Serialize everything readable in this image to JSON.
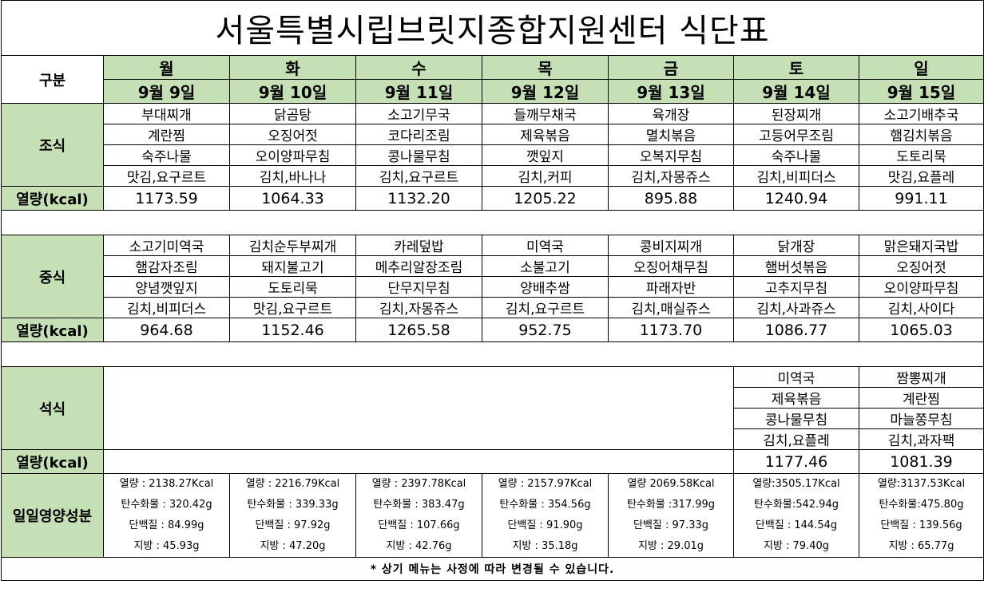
{
  "title": "서울특별시립브릿지종합지원센터  식단표",
  "header": {
    "label": "구분",
    "days": [
      "월",
      "화",
      "수",
      "목",
      "금",
      "토",
      "일"
    ],
    "dates": [
      "9월 9일",
      "9월 10일",
      "9월 11일",
      "9월 12일",
      "9월 13일",
      "9월 14일",
      "9월 15일"
    ]
  },
  "calorie_label": "열량(kcal)",
  "breakfast": {
    "label": "조식",
    "rows": [
      [
        "부대찌개",
        "닭곰탕",
        "소고기무국",
        "들깨무채국",
        "육개장",
        "된장찌개",
        "소고기배추국"
      ],
      [
        "계란찜",
        "오징어젓",
        "코다리조림",
        "제육볶음",
        "멸치볶음",
        "고등어무조림",
        "햄김치볶음"
      ],
      [
        "숙주나물",
        "오이양파무침",
        "콩나물무침",
        "깻잎지",
        "오복지무침",
        "숙주나물",
        "도토리묵"
      ],
      [
        "맛김,요구르트",
        "김치,바나나",
        "김치,요구르트",
        "김치,커피",
        "김치,자몽쥬스",
        "김치,비피더스",
        "맛김,요플레"
      ]
    ],
    "kcal": [
      "1173.59",
      "1064.33",
      "1132.20",
      "1205.22",
      "895.88",
      "1240.94",
      "991.11"
    ]
  },
  "lunch": {
    "label": "중식",
    "rows": [
      [
        "소고기미역국",
        "김치순두부찌개",
        "카레덮밥",
        "미역국",
        "콩비지찌개",
        "닭개장",
        "맑은돼지국밥"
      ],
      [
        "햄감자조림",
        "돼지불고기",
        "메추리알장조림",
        "소불고기",
        "오징어채무침",
        "햄버섯볶음",
        "오징어젓"
      ],
      [
        "양념깻잎지",
        "도토리묵",
        "단무지무침",
        "양배추쌈",
        "파래자반",
        "고추지무침",
        "오이양파무침"
      ],
      [
        "김치,비피더스",
        "맛김,요구르트",
        "김치,자몽쥬스",
        "김치,요구르트",
        "김치,매실쥬스",
        "김치,사과쥬스",
        "김치,사이다"
      ]
    ],
    "kcal": [
      "964.68",
      "1152.46",
      "1265.58",
      "952.75",
      "1173.70",
      "1086.77",
      "1065.03"
    ]
  },
  "dinner": {
    "label": "석식",
    "sat": [
      "미역국",
      "제육볶음",
      "콩나물무침",
      "김치,요플레"
    ],
    "sun": [
      "짬뽕찌개",
      "계란찜",
      "마늘쫑무침",
      "김치,과자팩"
    ],
    "kcal_sat": "1177.46",
    "kcal_sun": "1081.39"
  },
  "nutrition": {
    "label": "일일영양성분",
    "days": [
      [
        "열량 : 2138.27Kcal",
        "탄수화물 : 320.42g",
        "단백질 : 84.99g",
        "지방 : 45.93g"
      ],
      [
        "열량 : 2216.79Kcal",
        "탄수화물 : 339.33g",
        "단백질 : 97.92g",
        "지방 : 47.20g"
      ],
      [
        "열량 : 2397.78Kcal",
        "탄수화물 : 383.47g",
        "단백질 : 107.66g",
        "지방 : 42.76g"
      ],
      [
        "열량 : 2157.97Kcal",
        "탄수화물 : 354.56g",
        "단백질 : 91.90g",
        "지방 : 35.18g"
      ],
      [
        "열량  2069.58Kcal",
        "탄수화물  :317.99g",
        "단백질  : 97.33g",
        "지방  : 29.01g"
      ],
      [
        "열량:3505.17Kcal",
        "탄수화물:542.94g",
        "단백질  : 144.54g",
        "지방  : 79.40g"
      ],
      [
        "열량:3137.53Kcal",
        "탄수화물:475.80g",
        "단백질  : 139.56g",
        "지방  : 65.77g"
      ]
    ]
  },
  "note": "*  상기  메뉴는  사정에  따라  변경될  수  있습니다."
}
